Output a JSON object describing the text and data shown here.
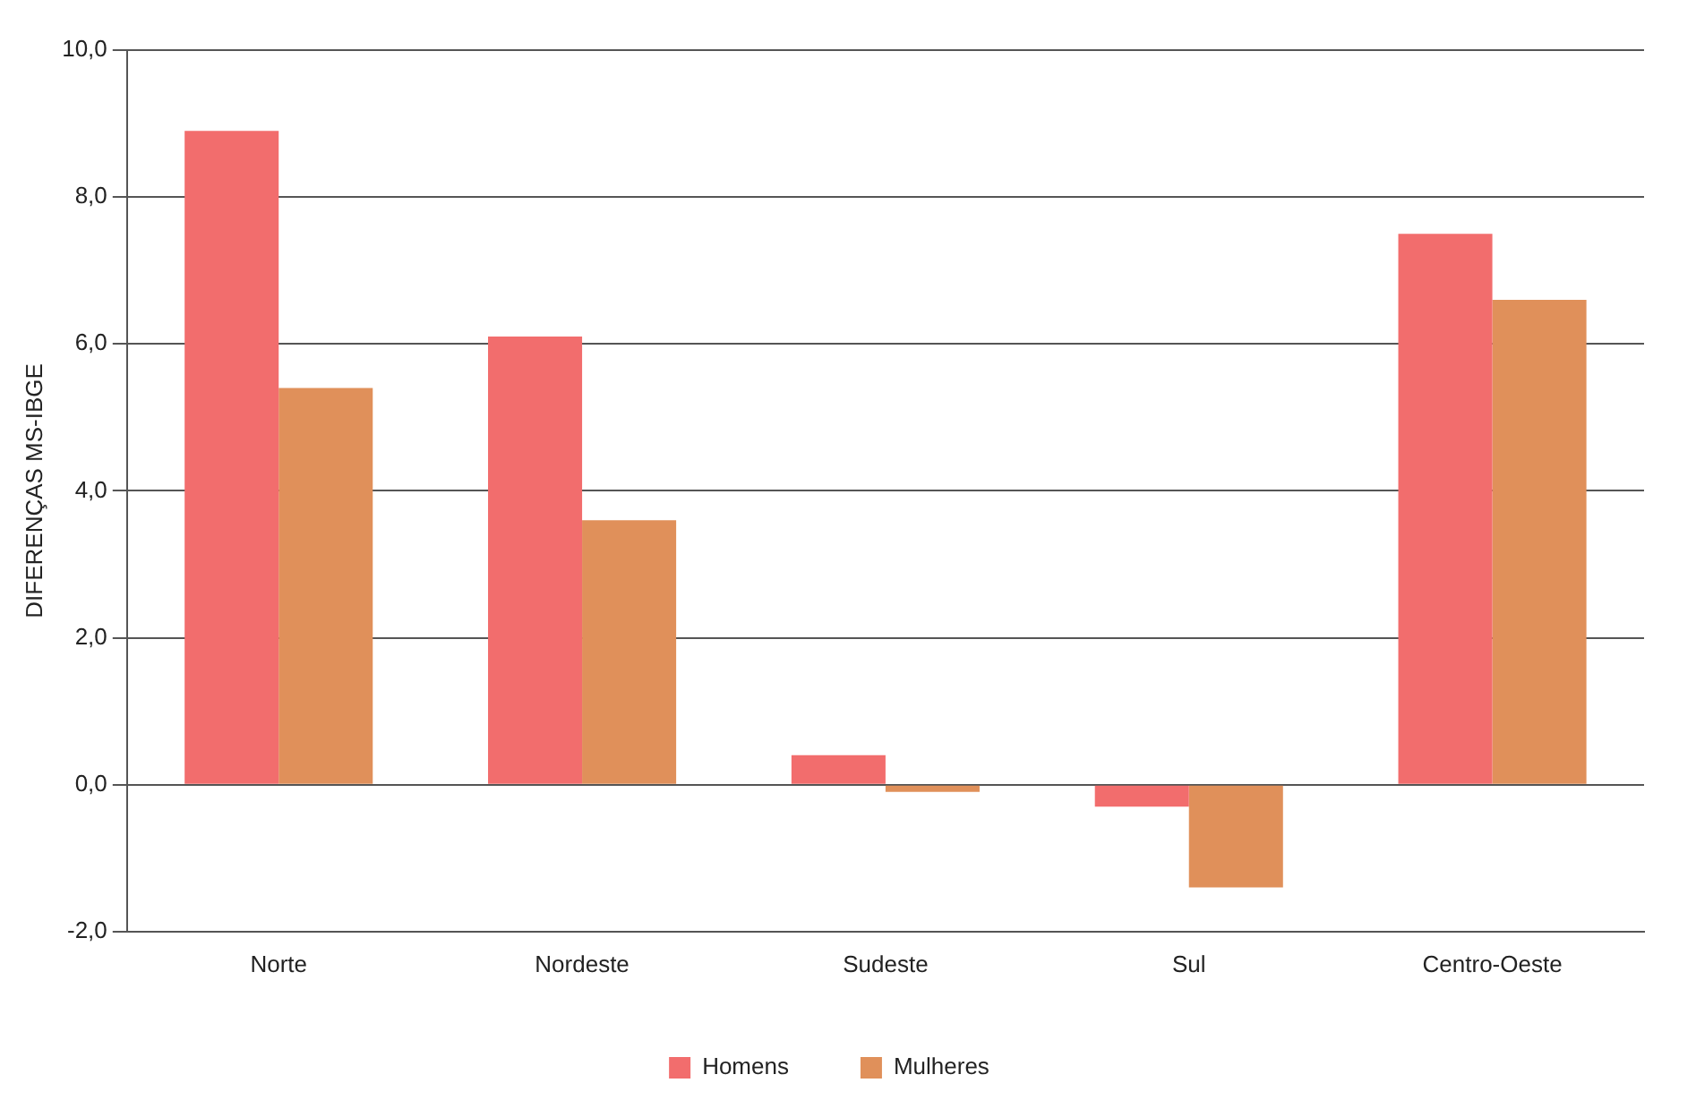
{
  "chart_data": {
    "type": "bar",
    "ylabel": "DIFERENÇAS MS-IBGE",
    "categories": [
      "Norte",
      "Nordeste",
      "Sudeste",
      "Sul",
      "Centro-Oeste"
    ],
    "series": [
      {
        "name": "Homens",
        "color": "#f26d6d",
        "values": [
          8.9,
          6.1,
          0.4,
          -0.3,
          7.5
        ]
      },
      {
        "name": "Mulheres",
        "color": "#e0905a",
        "values": [
          5.4,
          3.6,
          -0.1,
          -1.4,
          6.6
        ]
      }
    ],
    "ylim": [
      -2,
      10
    ],
    "yticks": [
      {
        "value": -2,
        "label": "-2,0"
      },
      {
        "value": 0,
        "label": "0,0"
      },
      {
        "value": 2,
        "label": "2,0"
      },
      {
        "value": 4,
        "label": "4,0"
      },
      {
        "value": 6,
        "label": "6,0"
      },
      {
        "value": 8,
        "label": "8,0"
      },
      {
        "value": 10,
        "label": "10,0"
      }
    ],
    "grid": "y",
    "legend": "bottom"
  }
}
